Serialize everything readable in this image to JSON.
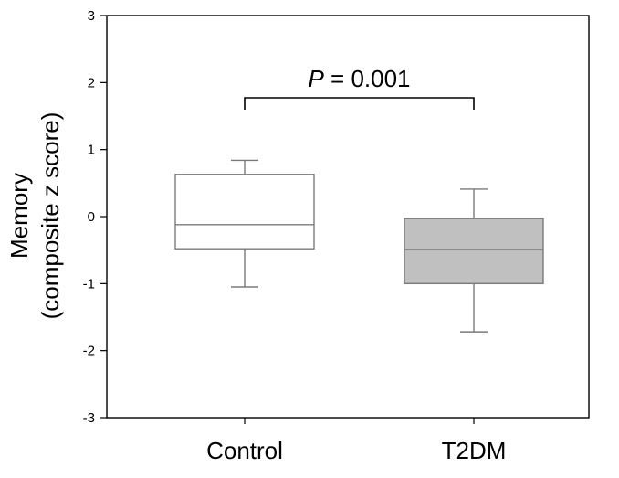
{
  "chart_data": {
    "type": "box",
    "ylabel_line1": "Memory",
    "ylabel_line2": "(composite z score)",
    "ylim": [
      -3,
      3
    ],
    "yticks": [
      "-3",
      "-2",
      "-1",
      "0",
      "1",
      "2",
      "3"
    ],
    "categories": [
      "Control",
      "T2DM"
    ],
    "boxes": [
      {
        "name": "Control",
        "whisker_low": -1.05,
        "q1": -0.48,
        "median": -0.12,
        "q3": 0.63,
        "whisker_high": 0.84,
        "fill": "#ffffff"
      },
      {
        "name": "T2DM",
        "whisker_low": -1.72,
        "q1": -1.0,
        "median": -0.49,
        "q3": -0.03,
        "whisker_high": 0.41,
        "fill": "#c0c0c0"
      }
    ],
    "annotation": {
      "italic_part": "P",
      "rest": " = 0.001"
    },
    "grid": false,
    "colors": {
      "box_stroke": "#7a7a7a",
      "axis": "#000000"
    }
  }
}
